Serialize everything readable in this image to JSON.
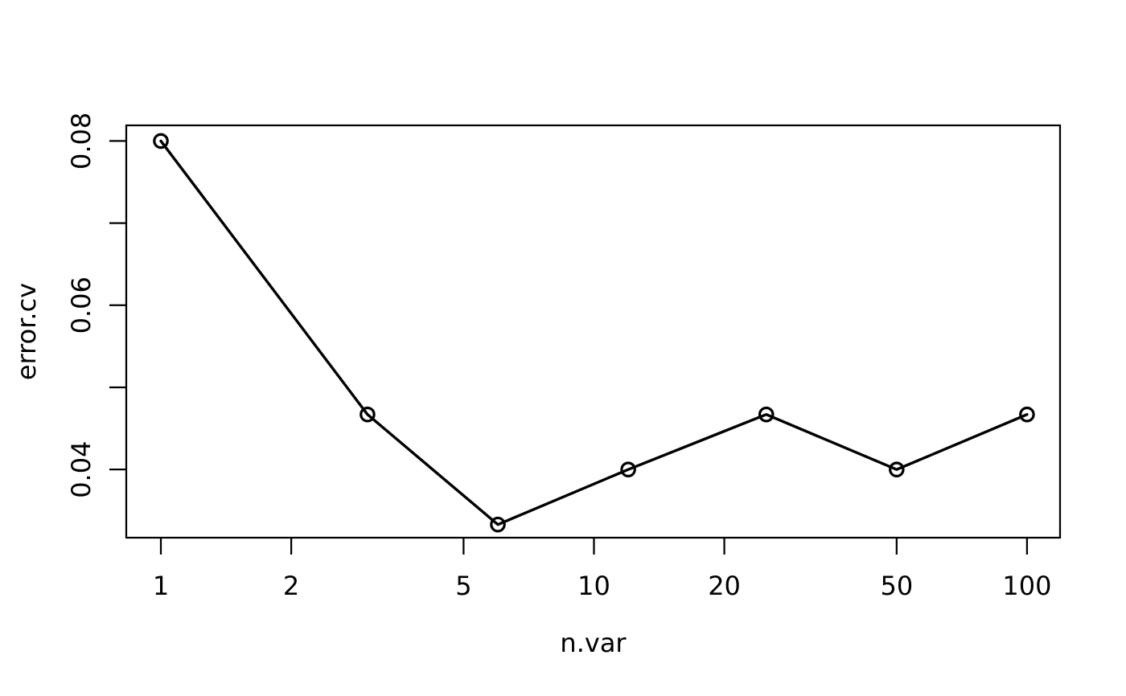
{
  "chart_data": {
    "type": "line",
    "title": "",
    "xlabel": "n.var",
    "ylabel": "error.cv",
    "x_scale": "log10",
    "y_scale": "linear",
    "grid": false,
    "legend": null,
    "series": [
      {
        "name": "error.cv",
        "x": [
          1,
          3,
          6,
          12,
          25,
          50,
          100
        ],
        "y": [
          0.08,
          0.0467,
          0.0333,
          0.04,
          0.0467,
          0.04,
          0.0467
        ],
        "marker": "open-circle",
        "color": "#000000"
      }
    ],
    "x_ticks": [
      {
        "value": 1,
        "label": "1"
      },
      {
        "value": 2,
        "label": "2"
      },
      {
        "value": 5,
        "label": "5"
      },
      {
        "value": 10,
        "label": "10"
      },
      {
        "value": 20,
        "label": "20"
      },
      {
        "value": 50,
        "label": "50"
      },
      {
        "value": 100,
        "label": "100"
      }
    ],
    "y_ticks": [
      {
        "value": 0.04,
        "label": "0.04"
      },
      {
        "value": 0.05,
        "label": ""
      },
      {
        "value": 0.06,
        "label": "0.06"
      },
      {
        "value": 0.07,
        "label": ""
      },
      {
        "value": 0.08,
        "label": "0.08"
      }
    ],
    "xlim": [
      0.832,
      119.2
    ],
    "ylim": [
      0.0317,
      0.0819
    ],
    "colors": {
      "foreground": "#000000",
      "background": "#ffffff"
    }
  }
}
